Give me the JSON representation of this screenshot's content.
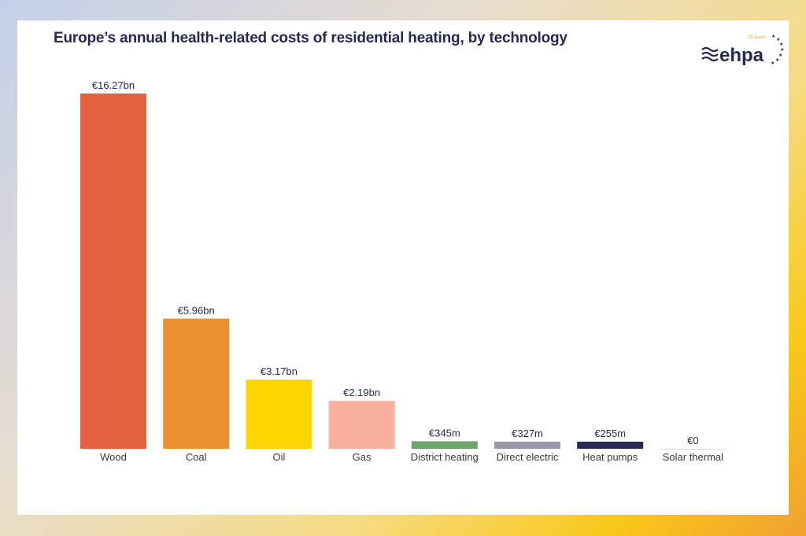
{
  "title": "Europe’s annual health-related costs of residential heating, by technology",
  "logo": {
    "text": "ehpa",
    "subtext": "25 years"
  },
  "chart_data": {
    "type": "bar",
    "title": "Europe’s annual health-related costs of residential heating, by technology",
    "categories": [
      "Wood",
      "Coal",
      "Oil",
      "Gas",
      "District heating",
      "Direct electric",
      "Heat pumps",
      "Solar thermal"
    ],
    "values": [
      16.27,
      5.96,
      3.17,
      2.19,
      0.345,
      0.327,
      0.255,
      0
    ],
    "unit": "€ billion",
    "data_labels": [
      "€16.27bn",
      "€5.96bn",
      "€3.17bn",
      "€2.19bn",
      "€345m",
      "€327m",
      "€255m",
      "€0"
    ],
    "colors": [
      "#e2623c",
      "#e98f30",
      "#fdd600",
      "#f9b19c",
      "#6da66a",
      "#9b97ad",
      "#262950",
      "#f2c200"
    ],
    "xlabel": "",
    "ylabel": "",
    "ylim": [
      0,
      16.27
    ],
    "grid": false
  }
}
